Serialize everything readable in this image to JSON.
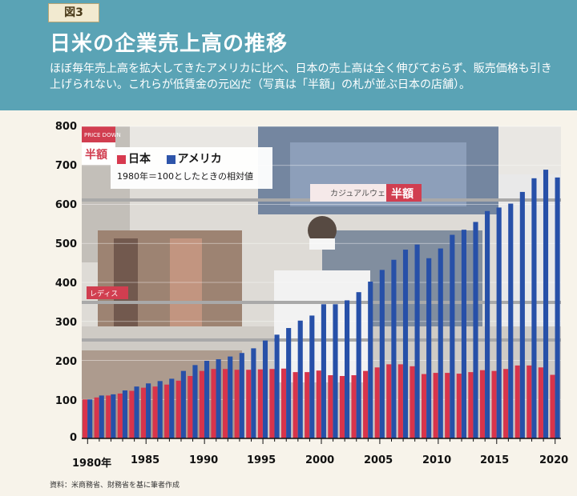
{
  "header": {
    "fig_label": "図3",
    "title": "日米の企業売上高の推移",
    "subtitle": "ほぼ毎年売上高を拡大してきたアメリカに比べ、日本の売上高は全く伸びておらず、販売価格も引き上げられない。これらが低賃金の元凶だ（写真は「半額」の札が並ぶ日本の店舗）。"
  },
  "colors": {
    "japan": "#d8344b",
    "usa": "#2750a8",
    "header_bg": "#5aa3b5"
  },
  "chart_data": {
    "type": "bar",
    "x": [
      1980,
      1981,
      1982,
      1983,
      1984,
      1985,
      1986,
      1987,
      1988,
      1989,
      1990,
      1991,
      1992,
      1993,
      1994,
      1995,
      1996,
      1997,
      1998,
      1999,
      2000,
      2001,
      2002,
      2003,
      2004,
      2005,
      2006,
      2007,
      2008,
      2009,
      2010,
      2011,
      2012,
      2013,
      2014,
      2015,
      2016,
      2017,
      2018,
      2019,
      2020
    ],
    "series": [
      {
        "name": "日本",
        "values": [
          100,
          105,
          110,
          115,
          122,
          130,
          133,
          138,
          148,
          160,
          173,
          178,
          178,
          176,
          176,
          177,
          178,
          179,
          170,
          170,
          174,
          162,
          160,
          162,
          173,
          182,
          190,
          190,
          185,
          165,
          168,
          168,
          166,
          170,
          175,
          173,
          178,
          187,
          187,
          182,
          163
        ]
      },
      {
        "name": "アメリカ",
        "values": [
          100,
          110,
          113,
          123,
          133,
          141,
          147,
          153,
          173,
          188,
          199,
          203,
          210,
          219,
          231,
          251,
          266,
          283,
          302,
          315,
          344,
          344,
          354,
          375,
          402,
          432,
          458,
          484,
          497,
          462,
          487,
          522,
          535,
          555,
          583,
          592,
          602,
          632,
          667,
          689,
          669
        ]
      }
    ],
    "xticks": [
      "1980年",
      "1985",
      "1990",
      "1995",
      "2000",
      "2005",
      "2010",
      "2015",
      "2020"
    ],
    "yticks": [
      "0",
      "100",
      "200",
      "300",
      "400",
      "500",
      "600",
      "700",
      "800"
    ],
    "ylim": [
      0,
      800
    ],
    "legend_note": "1980年＝100としたときの相対値",
    "legend_placement": "top-left"
  },
  "source": "資料：米商務省、財務省を基に筆者作成",
  "photo": {
    "shelf_sign_1": "カジュアルウェア",
    "shelf_sign_2": "半額",
    "tag_1": "PRICE DOWN",
    "tag_2": "半額",
    "tag_3": "レディス"
  }
}
